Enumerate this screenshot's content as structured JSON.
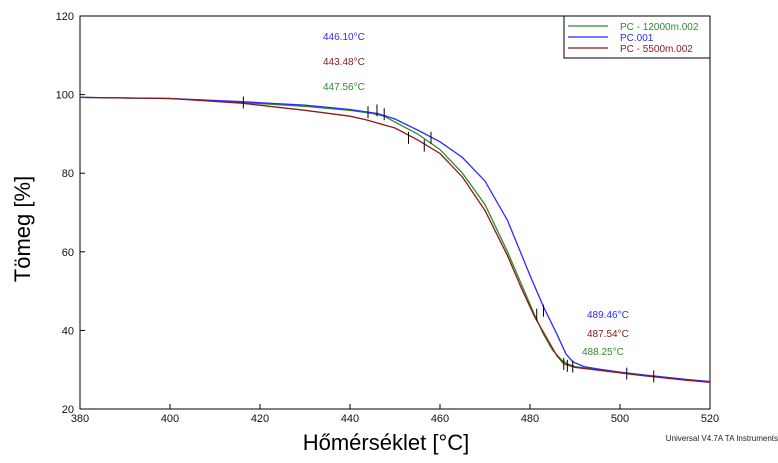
{
  "chart_data": {
    "type": "line",
    "title": "",
    "xlabel": "Hőmérséklet [°C]",
    "ylabel": "Tömeg [%]",
    "xlim": [
      380,
      520
    ],
    "ylim": [
      20,
      120
    ],
    "xticks": [
      380,
      400,
      420,
      440,
      460,
      480,
      500,
      520
    ],
    "yticks": [
      20,
      40,
      60,
      80,
      100,
      120
    ],
    "grid": false,
    "legend_position": "top-right",
    "series": [
      {
        "name": "PC - 12000m.002",
        "color": "#2e8b2e",
        "x": [
          380,
          400,
          416,
          430,
          440,
          445,
          447.6,
          450,
          455,
          460,
          465,
          470,
          475,
          478,
          481,
          483,
          485,
          487,
          488.3,
          490,
          495,
          500,
          505,
          510,
          515,
          520
        ],
        "y": [
          99.3,
          99.0,
          98.0,
          97.0,
          96.0,
          95.2,
          94.5,
          93.0,
          90.0,
          86.0,
          80.0,
          72.0,
          60.0,
          52.0,
          44.0,
          39.0,
          35.0,
          32.5,
          31.5,
          30.8,
          30.0,
          29.3,
          28.6,
          28.0,
          27.4,
          26.9
        ]
      },
      {
        "name": "PC.001",
        "color": "#2b2bff",
        "x": [
          380,
          400,
          416,
          430,
          440,
          446.1,
          450,
          455,
          460,
          465,
          470,
          475,
          480,
          483,
          486,
          488,
          489.5,
          492,
          495,
          500,
          505,
          510,
          515,
          520
        ],
        "y": [
          99.3,
          99.0,
          98.2,
          97.3,
          96.2,
          95.2,
          93.8,
          91.0,
          88.0,
          84.0,
          78.0,
          68.0,
          54.0,
          46.0,
          39.0,
          34.0,
          32.0,
          30.8,
          30.2,
          29.4,
          28.7,
          28.1,
          27.5,
          27.0
        ]
      },
      {
        "name": "PC - 5500m.002",
        "color": "#8b1a1a",
        "x": [
          380,
          400,
          416,
          430,
          440,
          443.5,
          450,
          455,
          460,
          465,
          470,
          475,
          478,
          481,
          484,
          486,
          487.5,
          490,
          495,
          500,
          505,
          510,
          515,
          520
        ],
        "y": [
          99.3,
          99.0,
          97.8,
          96.0,
          94.5,
          93.6,
          91.5,
          88.5,
          85.0,
          79.0,
          70.5,
          59.0,
          51.0,
          43.5,
          37.5,
          33.5,
          31.5,
          30.6,
          29.9,
          29.2,
          28.5,
          27.9,
          27.3,
          26.8
        ]
      }
    ],
    "onset_annotations": [
      {
        "text": "446.10°C",
        "color": "#2b2bff"
      },
      {
        "text": "443.48°C",
        "color": "#8b1a1a"
      },
      {
        "text": "447.56°C",
        "color": "#2e8b2e"
      }
    ],
    "endset_annotations": [
      {
        "text": "489.46°C",
        "color": "#2b2bff"
      },
      {
        "text": "487.54°C",
        "color": "#8b1a1a"
      },
      {
        "text": "488.25°C",
        "color": "#2e8b2e"
      }
    ],
    "markers": [
      {
        "x": 416.3,
        "y": 98.0
      },
      {
        "x": 444.0,
        "y": 95.5
      },
      {
        "x": 446.0,
        "y": 96.0
      },
      {
        "x": 447.6,
        "y": 95.0
      },
      {
        "x": 453.0,
        "y": 89.0
      },
      {
        "x": 456.5,
        "y": 87.0
      },
      {
        "x": 458.0,
        "y": 89.0
      },
      {
        "x": 481.5,
        "y": 44.0
      },
      {
        "x": 483.0,
        "y": 45.0
      },
      {
        "x": 487.5,
        "y": 31.5
      },
      {
        "x": 488.3,
        "y": 31.0
      },
      {
        "x": 489.5,
        "y": 30.8
      },
      {
        "x": 501.5,
        "y": 29.0
      },
      {
        "x": 507.5,
        "y": 28.3
      }
    ]
  },
  "footer": "Universal V4.7A TA Instruments"
}
